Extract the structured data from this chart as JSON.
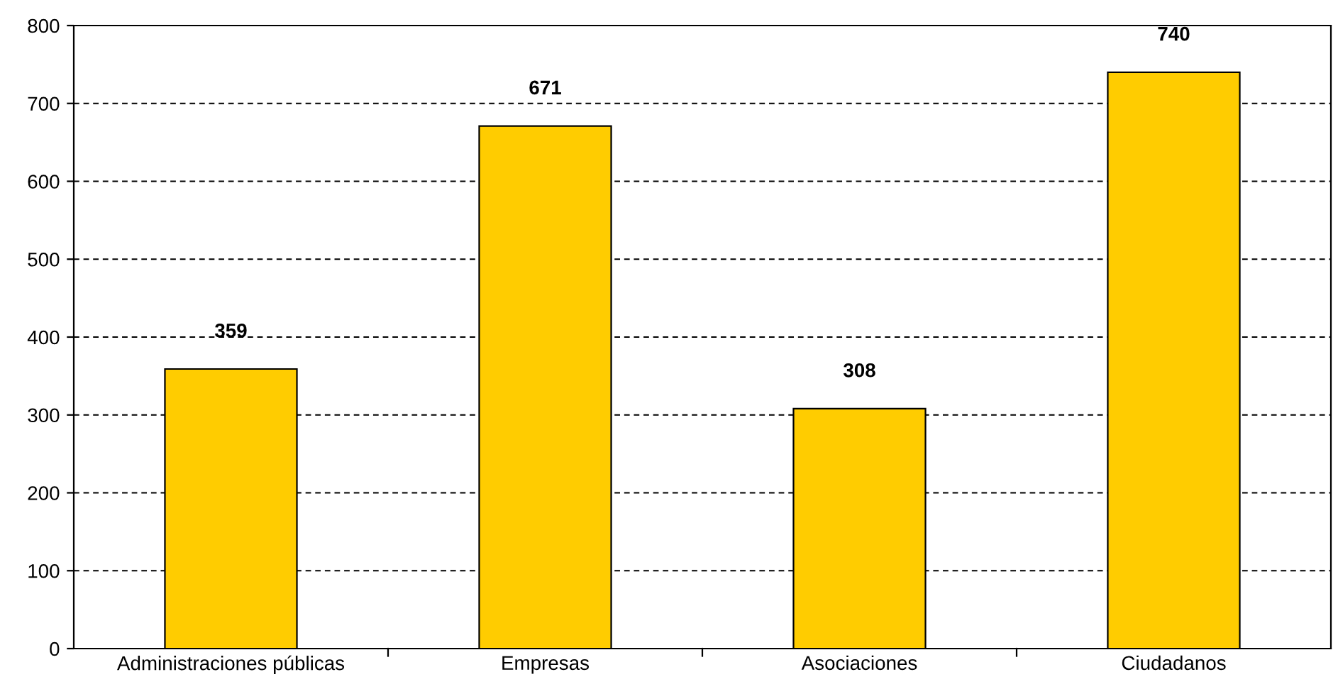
{
  "chart_data": {
    "type": "bar",
    "categories": [
      "Administraciones públicas",
      "Empresas",
      "Asociaciones",
      "Ciudadanos"
    ],
    "values": [
      359,
      671,
      308,
      740
    ],
    "color": "#ffcc00",
    "ylim": [
      0,
      800
    ],
    "yticks": [
      0,
      100,
      200,
      300,
      400,
      500,
      600,
      700,
      800
    ],
    "grid": "y",
    "data_labels": true,
    "legend": false
  }
}
